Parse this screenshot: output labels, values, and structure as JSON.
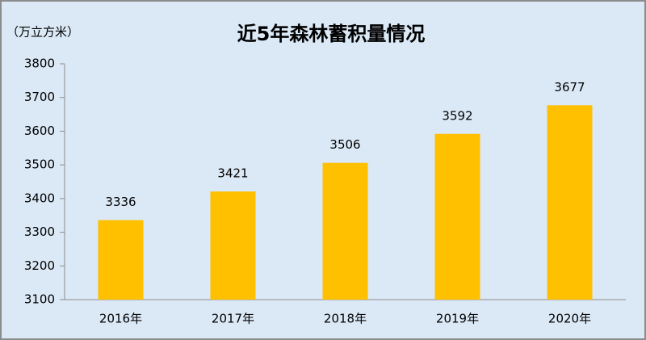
{
  "chart_data": {
    "type": "bar",
    "title": "近5年森林蓄积量情况",
    "ylabel": "（万立方米）",
    "categories": [
      "2016年",
      "2017年",
      "2018年",
      "2019年",
      "2020年"
    ],
    "values": [
      3336,
      3421,
      3506,
      3592,
      3677
    ],
    "color": "#ffc000",
    "ylim": [
      3100,
      3800
    ],
    "yticks": [
      3100,
      3200,
      3300,
      3400,
      3500,
      3600,
      3700,
      3800
    ],
    "grid": false
  }
}
